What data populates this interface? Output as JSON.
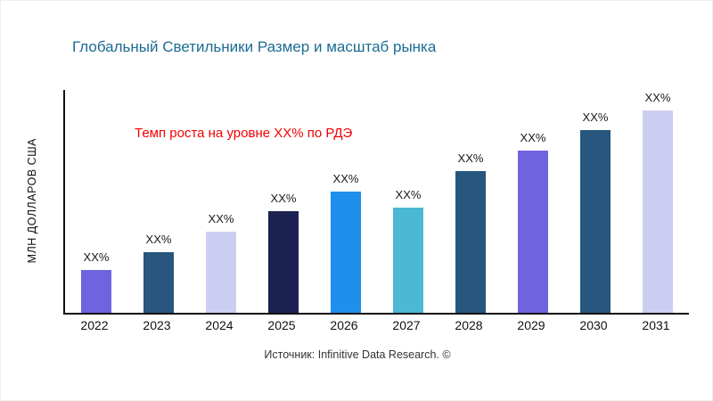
{
  "page": {
    "title": "Глобальный Светильники Размер и масштаб рынка",
    "source": "Источник: Infinitive Data Research. ©"
  },
  "colors": {
    "title_text": "#1B6B93",
    "annotation_text": "#F40000",
    "axis": "#111111",
    "background": "#FFFFFF"
  },
  "chart_data": {
    "type": "bar",
    "title": "Глобальный Светильники Размер и масштаб рынка",
    "xlabel": "",
    "ylabel": "МЛН ДОЛЛАРОВ США",
    "categories": [
      "2022",
      "2023",
      "2024",
      "2025",
      "2026",
      "2027",
      "2028",
      "2029",
      "2030",
      "2031"
    ],
    "values": [
      21,
      30,
      40,
      50,
      60,
      52,
      70,
      80,
      90,
      100
    ],
    "values_note": "relative heights estimated from pixels; actual values masked as XX% in source image",
    "bar_labels": [
      "XX%",
      "XX%",
      "XX%",
      "XX%",
      "XX%",
      "XX%",
      "XX%",
      "XX%",
      "XX%",
      "XX%"
    ],
    "bar_colors": [
      "#6F63E0",
      "#27567F",
      "#CBCEF0",
      "#1B2150",
      "#1E8FEA",
      "#4BB8D4",
      "#27567F",
      "#6F63E0",
      "#27567F",
      "#CBCEF0"
    ],
    "ylim": [
      0,
      110
    ],
    "grid": false,
    "legend": "none",
    "annotation": "Темп роста на уровне XX% по РДЭ"
  }
}
